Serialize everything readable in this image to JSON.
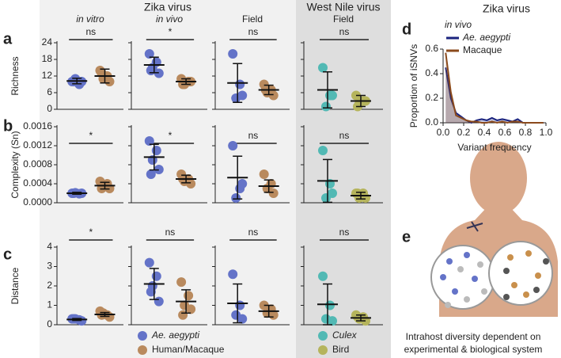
{
  "headers": [
    "Zika virus",
    "West Nile virus"
  ],
  "panel_labels": [
    "a",
    "b",
    "c",
    "d",
    "e"
  ],
  "legend": [
    {
      "name": "Ae. aegypti",
      "color": "#6473c8",
      "italic": true
    },
    {
      "name": "Human/Macaque",
      "color": "#b98a5e",
      "italic": false
    },
    {
      "name": "Culex",
      "color": "#52b9b4",
      "italic": true
    },
    {
      "name": "Bird",
      "color": "#b5b45c",
      "italic": false
    }
  ],
  "caption_e": [
    "Intrahost diversity dependent on",
    "experimental & biological system"
  ],
  "chart_data": [
    {
      "type": "strip",
      "ylabel": "Richness",
      "ylim": [
        0,
        24
      ],
      "yticks": [
        0,
        6,
        12,
        18,
        24
      ],
      "panels": [
        {
          "title": "in vitro",
          "italic": true,
          "significance": "ns",
          "groups": [
            {
              "color": "#6473c8",
              "values": [
                10,
                9,
                11,
                10,
                10
              ],
              "mean": 10.2,
              "sd": 1
            },
            {
              "color": "#b98a5e",
              "values": [
                14,
                12,
                11,
                10,
                13
              ],
              "mean": 12,
              "sd": 2.5
            }
          ]
        },
        {
          "title": "in vivo",
          "italic": true,
          "significance": "*",
          "groups": [
            {
              "color": "#6473c8",
              "values": [
                20,
                17,
                15,
                13,
                14
              ],
              "mean": 16,
              "sd": 2.8
            },
            {
              "color": "#b98a5e",
              "values": [
                11,
                10,
                9,
                10,
                9
              ],
              "mean": 10,
              "sd": 1
            }
          ]
        },
        {
          "title": "Field",
          "italic": false,
          "significance": "ns",
          "groups": [
            {
              "color": "#6473c8",
              "values": [
                20,
                9,
                4,
                5
              ],
              "mean": 9.5,
              "sd": 7
            },
            {
              "color": "#b98a5e",
              "values": [
                9,
                7,
                6,
                5,
                7
              ],
              "mean": 7,
              "sd": 1.7
            }
          ]
        },
        {
          "title": "Field",
          "italic": false,
          "significance": "ns",
          "groups": [
            {
              "color": "#52b9b4",
              "values": [
                15,
                5,
                1,
                5
              ],
              "mean": 7,
              "sd": 6.5
            },
            {
              "color": "#b5b45c",
              "values": [
                5,
                3,
                2,
                3,
                1
              ],
              "mean": 3,
              "sd": 2
            }
          ]
        }
      ]
    },
    {
      "type": "strip",
      "ylabel": "Complexity (Sn)",
      "ylim": [
        0,
        0.0016
      ],
      "yticks": [
        {
          "value": 0,
          "label": "0.0000"
        },
        {
          "value": 0.0004,
          "label": "0.0004"
        },
        {
          "value": 0.0008,
          "label": "0.0008"
        },
        {
          "value": 0.0012,
          "label": "0.0012"
        },
        {
          "value": 0.0016,
          "label": "0.0016"
        }
      ],
      "panels": [
        {
          "significance": "*",
          "groups": [
            {
              "color": "#6473c8",
              "values": [
                0.0002,
                0.00019,
                0.00021,
                0.0002,
                0.0002
              ],
              "mean": 0.0002,
              "sd": 2e-05
            },
            {
              "color": "#b98a5e",
              "values": [
                0.00045,
                0.0004,
                0.00035,
                0.0003,
                0.0003
              ],
              "mean": 0.00036,
              "sd": 7e-05
            }
          ]
        },
        {
          "significance": "*",
          "groups": [
            {
              "color": "#6473c8",
              "values": [
                0.0013,
                0.0011,
                0.0009,
                0.0007,
                0.0006
              ],
              "mean": 0.00096,
              "sd": 0.00027
            },
            {
              "color": "#b98a5e",
              "values": [
                0.0006,
                0.0005,
                0.00045,
                0.0004,
                0.0005
              ],
              "mean": 0.0005,
              "sd": 8e-05
            }
          ]
        },
        {
          "significance": "ns",
          "groups": [
            {
              "color": "#6473c8",
              "values": [
                0.0012,
                0.0003,
                0.0001,
                0.0004
              ],
              "mean": 0.00053,
              "sd": 0.00045
            },
            {
              "color": "#b98a5e",
              "values": [
                0.0006,
                0.0004,
                0.0003,
                0.0002
              ],
              "mean": 0.00035,
              "sd": 0.00013
            }
          ]
        },
        {
          "significance": "ns",
          "groups": [
            {
              "color": "#52b9b4",
              "values": [
                0.0011,
                0.0004,
                0.0001,
                0.0002
              ],
              "mean": 0.00046,
              "sd": 0.00045
            },
            {
              "color": "#b5b45c",
              "values": [
                0.0002,
                0.0002,
                0.0001,
                0.0001,
                0.0002
              ],
              "mean": 0.00015,
              "sd": 7e-05
            }
          ]
        }
      ]
    },
    {
      "type": "strip",
      "ylabel": "Distance",
      "ylim": [
        0,
        4
      ],
      "yticks": [
        0,
        1,
        2,
        3,
        4
      ],
      "panels": [
        {
          "significance": "*",
          "groups": [
            {
              "color": "#6473c8",
              "values": [
                0.3,
                0.25,
                0.3,
                0.2,
                0.3
              ],
              "mean": 0.27,
              "sd": 0.05
            },
            {
              "color": "#b98a5e",
              "values": [
                0.7,
                0.5,
                0.6,
                0.4,
                0.5
              ],
              "mean": 0.53,
              "sd": 0.1
            }
          ]
        },
        {
          "significance": "ns",
          "groups": [
            {
              "color": "#6473c8",
              "values": [
                3.2,
                2.5,
                2,
                1.2,
                1.7
              ],
              "mean": 2.1,
              "sd": 0.8
            },
            {
              "color": "#b98a5e",
              "values": [
                2.2,
                1.5,
                1,
                0.8,
                0.5
              ],
              "mean": 1.2,
              "sd": 0.6
            }
          ]
        },
        {
          "significance": "ns",
          "groups": [
            {
              "color": "#6473c8",
              "values": [
                2.6,
                1,
                0.5,
                0.3
              ],
              "mean": 1.1,
              "sd": 1
            },
            {
              "color": "#b98a5e",
              "values": [
                1,
                0.8,
                0.6,
                0.5
              ],
              "mean": 0.7,
              "sd": 0.3
            }
          ]
        },
        {
          "significance": "ns",
          "groups": [
            {
              "color": "#52b9b4",
              "values": [
                2.5,
                1,
                0.3,
                0.2
              ],
              "mean": 1.05,
              "sd": 1.05
            },
            {
              "color": "#b5b45c",
              "values": [
                0.5,
                0.4,
                0.3,
                0.2,
                0.4
              ],
              "mean": 0.35,
              "sd": 0.15
            }
          ]
        }
      ]
    },
    {
      "type": "line",
      "title": "Zika virus",
      "subtitle": "in vivo",
      "xlabel": "Variant frequency",
      "ylabel": "Proportion of iSNVs",
      "xlim": [
        0,
        1
      ],
      "xticks": [
        {
          "value": 0,
          "label": "0.0"
        },
        0.2,
        0.4,
        0.6,
        0.8,
        {
          "value": 1,
          "label": "1.0"
        }
      ],
      "ylim": [
        0,
        0.6
      ],
      "yticks": [
        {
          "value": 0,
          "label": "0.0"
        },
        0.2,
        0.4,
        0.6
      ],
      "x": [
        0.025,
        0.075,
        0.125,
        0.175,
        0.225,
        0.275,
        0.325,
        0.375,
        0.425,
        0.475,
        0.525,
        0.575,
        0.625,
        0.675,
        0.725,
        0.775,
        0.825,
        0.875,
        0.925,
        0.975
      ],
      "series": [
        {
          "name": "Ae. aegypti",
          "color": "#1a237e",
          "values": [
            0.45,
            0.2,
            0.08,
            0.05,
            0.02,
            0,
            0.02,
            0.03,
            0.02,
            0.04,
            0.02,
            0.03,
            0.02,
            0.01,
            0.03,
            0,
            0,
            0,
            0,
            0
          ]
        },
        {
          "name": "Macaque",
          "color": "#8b4a1c",
          "values": [
            0.57,
            0.25,
            0.06,
            0.04,
            0.02,
            0.01,
            0.01,
            0,
            0,
            0.01,
            0,
            0.01,
            0,
            0.01,
            0.01,
            0,
            0,
            0,
            0,
            0
          ]
        }
      ]
    }
  ]
}
